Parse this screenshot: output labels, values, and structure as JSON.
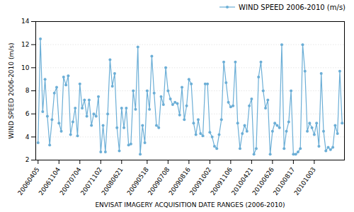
{
  "chart_data": {
    "type": "line",
    "xlabel": "ENVISAT IMAGERY ACQUISITION DATE RANGES (2006-2010)",
    "ylabel": "WIND SPEED 2006-2010 (m/s)",
    "categories": [
      "20060405",
      null,
      null,
      null,
      null,
      null,
      null,
      null,
      null,
      "20061104",
      null,
      null,
      null,
      null,
      null,
      null,
      null,
      null,
      "20070704",
      null,
      null,
      null,
      null,
      null,
      null,
      null,
      null,
      "20071102",
      null,
      null,
      null,
      null,
      null,
      null,
      null,
      null,
      "20080621",
      null,
      null,
      null,
      null,
      null,
      null,
      null,
      null,
      null,
      null,
      "20090518",
      null,
      null,
      null,
      null,
      null,
      null,
      null,
      null,
      "20090708",
      null,
      null,
      null,
      null,
      null,
      null,
      null,
      null,
      "20090816",
      null,
      null,
      null,
      null,
      null,
      null,
      null,
      null,
      "20091002",
      null,
      null,
      null,
      null,
      null,
      null,
      null,
      null,
      "20091106",
      null,
      null,
      null,
      null,
      null,
      null,
      null,
      null,
      "20100421",
      null,
      null,
      null,
      null,
      null,
      null,
      null,
      null,
      "20100626",
      null,
      null,
      null,
      null,
      null,
      null,
      null,
      null,
      "20100817",
      null,
      null,
      null,
      null,
      null,
      null,
      null,
      null,
      "20101003",
      null,
      null,
      null,
      null,
      null,
      null,
      null,
      null,
      null,
      null,
      null,
      null
    ],
    "series": [
      {
        "name": "WIND SPEED 2006-2010  (m/s)",
        "color": "#6baed6",
        "marker": "circle",
        "values": [
          3.5,
          12.5,
          6.2,
          9.0,
          5.8,
          3.3,
          5.5,
          7.8,
          8.3,
          5.2,
          4.5,
          9.2,
          8.5,
          9.3,
          4.2,
          5.3,
          6.5,
          4.1,
          8.6,
          6.5,
          7.2,
          5.8,
          7.2,
          5.0,
          6.0,
          5.8,
          7.5,
          2.7,
          5.0,
          2.7,
          6.0,
          10.7,
          8.4,
          9.5,
          4.8,
          2.8,
          6.5,
          4.8,
          6.5,
          3.3,
          3.4,
          8.0,
          6.4,
          11.8,
          2.5,
          5.0,
          3.5,
          8.0,
          6.4,
          11.0,
          7.8,
          5.0,
          4.8,
          7.5,
          6.8,
          10.0,
          8.0,
          7.3,
          6.8,
          7.0,
          6.9,
          5.9,
          8.3,
          5.5,
          6.7,
          9.0,
          8.6,
          5.2,
          4.2,
          5.5,
          4.3,
          4.1,
          8.6,
          8.6,
          4.4,
          4.0,
          3.2,
          3.0,
          4.2,
          5.5,
          10.5,
          8.7,
          7.0,
          6.6,
          6.7,
          10.5,
          5.2,
          3.0,
          4.3,
          5.0,
          4.5,
          6.7,
          7.3,
          2.5,
          3.0,
          9.2,
          10.5,
          8.0,
          6.5,
          7.2,
          2.5,
          4.5,
          5.2,
          5.0,
          4.8,
          12.0,
          3.0,
          4.5,
          5.3,
          8.0,
          2.5,
          2.5,
          2.7,
          3.0,
          12.0,
          9.7,
          4.5,
          5.2,
          4.8,
          4.2,
          5.2,
          3.2,
          9.5,
          4.5,
          2.8,
          3.1,
          2.9,
          3.1,
          5.0,
          4.3,
          9.7,
          5.2
        ]
      }
    ],
    "ylim": [
      2,
      14
    ],
    "yticks": [
      2,
      4,
      6,
      8,
      10,
      12,
      14
    ],
    "grid": true,
    "legend": "upper right"
  }
}
